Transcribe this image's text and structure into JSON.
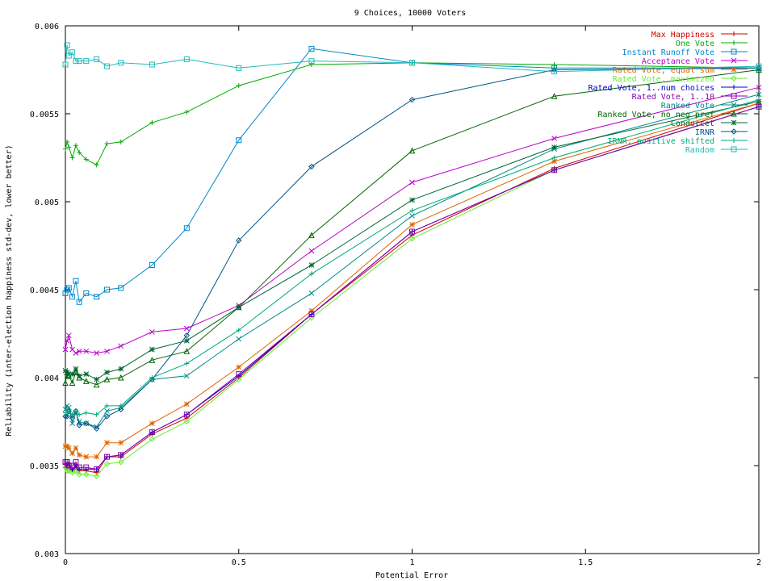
{
  "chart_data": {
    "type": "line",
    "title": "9 Choices, 10000 Voters",
    "xlabel": "Potential Error",
    "ylabel": "Reliability (inter-election happiness std-dev, lower better)",
    "xlim": [
      0,
      2
    ],
    "ylim": [
      0.003,
      0.006
    ],
    "xticks": [
      0,
      0.5,
      1,
      1.5,
      2
    ],
    "xtick_labels": [
      "0",
      "0.5",
      "1",
      "1.5",
      "2"
    ],
    "yticks": [
      0.003,
      0.0035,
      0.004,
      0.0045,
      0.005,
      0.0055,
      0.006
    ],
    "ytick_labels": [
      "0.003",
      "0.0035",
      "0.004",
      "0.0045",
      "0.005",
      "0.0055",
      "0.006"
    ],
    "grid": false,
    "legend_position": "top-right",
    "x": [
      0,
      0.005,
      0.01,
      0.02,
      0.03,
      0.04,
      0.06,
      0.09,
      0.12,
      0.16,
      0.25,
      0.35,
      0.5,
      0.71,
      1,
      1.41,
      2
    ],
    "series": [
      {
        "name": "Max Happiness",
        "color": "#cc0000",
        "marker": "+",
        "values": [
          0.00349,
          0.00348,
          0.00349,
          0.00347,
          0.00349,
          0.00347,
          0.00347,
          0.00346,
          0.00355,
          0.00355,
          0.00368,
          0.00377,
          0.004,
          0.00436,
          0.00481,
          0.00519,
          0.00556
        ]
      },
      {
        "name": "One Vote",
        "color": "#00aa00",
        "marker": "+",
        "values": [
          0.0053,
          0.00534,
          0.00531,
          0.00525,
          0.00532,
          0.00528,
          0.00524,
          0.00521,
          0.00533,
          0.00534,
          0.00545,
          0.00551,
          0.00566,
          0.00578,
          0.00579,
          0.00578,
          0.00576
        ]
      },
      {
        "name": "Instant Runoff Vote",
        "color": "#0088cc",
        "marker": "square",
        "values": [
          0.00448,
          0.0045,
          0.00451,
          0.00446,
          0.00455,
          0.00443,
          0.00448,
          0.00446,
          0.0045,
          0.00451,
          0.00464,
          0.00485,
          0.00535,
          0.00587,
          0.00579,
          0.00576,
          0.00576
        ]
      },
      {
        "name": "Acceptance Vote",
        "color": "#bb00cc",
        "marker": "x",
        "values": [
          0.00416,
          0.00421,
          0.00424,
          0.00416,
          0.00414,
          0.00415,
          0.00415,
          0.00414,
          0.00415,
          0.00418,
          0.00426,
          0.00428,
          0.00441,
          0.00472,
          0.00511,
          0.00536,
          0.00565
        ]
      },
      {
        "name": "Rated Vote, equal sum",
        "color": "#dd6600",
        "marker": "asterisk",
        "values": [
          0.00361,
          0.00361,
          0.0036,
          0.00357,
          0.0036,
          0.00356,
          0.00355,
          0.00355,
          0.00363,
          0.00363,
          0.00374,
          0.00385,
          0.00406,
          0.00438,
          0.00487,
          0.00523,
          0.00556
        ]
      },
      {
        "name": "Rated Vote, maximized",
        "color": "#66ee33",
        "marker": "diamond",
        "values": [
          0.00349,
          0.00347,
          0.00347,
          0.00346,
          0.00347,
          0.00345,
          0.00345,
          0.00344,
          0.00351,
          0.00352,
          0.00365,
          0.00375,
          0.00399,
          0.00434,
          0.00479,
          0.00518,
          0.00554
        ]
      },
      {
        "name": "Rated Vote, 1..num choices",
        "color": "#0000cc",
        "marker": "+",
        "values": [
          0.00351,
          0.0035,
          0.00351,
          0.00348,
          0.0035,
          0.00348,
          0.00348,
          0.00348,
          0.00355,
          0.00356,
          0.00369,
          0.00379,
          0.00401,
          0.00436,
          0.00483,
          0.00518,
          0.00554
        ]
      },
      {
        "name": "Rated Vote, 1..10",
        "color": "#8800aa",
        "marker": "square",
        "values": [
          0.00352,
          0.00352,
          0.0035,
          0.0035,
          0.00352,
          0.00349,
          0.00349,
          0.00348,
          0.00355,
          0.00356,
          0.00369,
          0.00379,
          0.00402,
          0.00436,
          0.00483,
          0.00518,
          0.00554
        ]
      },
      {
        "name": "Ranked Vote",
        "color": "#008888",
        "marker": "x",
        "values": [
          0.00382,
          0.00384,
          0.00383,
          0.00374,
          0.0038,
          0.00375,
          0.00374,
          0.00372,
          0.00381,
          0.00383,
          0.00399,
          0.00401,
          0.00422,
          0.00448,
          0.00492,
          0.0053,
          0.00561
        ]
      },
      {
        "name": "Ranked Vote, no neg pref",
        "color": "#006600",
        "marker": "triangle",
        "values": [
          0.00397,
          0.00403,
          0.00401,
          0.00397,
          0.00403,
          0.004,
          0.00398,
          0.00396,
          0.00399,
          0.004,
          0.0041,
          0.00415,
          0.0044,
          0.00481,
          0.00529,
          0.0056,
          0.00575
        ]
      },
      {
        "name": "Condorcet",
        "color": "#006633",
        "marker": "asterisk",
        "values": [
          0.00404,
          0.00403,
          0.00402,
          0.00402,
          0.00405,
          0.00401,
          0.00402,
          0.00399,
          0.00403,
          0.00405,
          0.00416,
          0.00421,
          0.0044,
          0.00464,
          0.00501,
          0.00531,
          0.00557
        ]
      },
      {
        "name": "IRNR",
        "color": "#005588",
        "marker": "diamond",
        "values": [
          0.00378,
          0.00378,
          0.00381,
          0.00377,
          0.00381,
          0.00373,
          0.00374,
          0.00371,
          0.00378,
          0.00382,
          0.00399,
          0.00424,
          0.00478,
          0.0052,
          0.00558,
          0.00575,
          0.00576
        ]
      },
      {
        "name": "IRNR, positive shifted",
        "color": "#00aa77",
        "marker": "+",
        "values": [
          0.0038,
          0.0038,
          0.00381,
          0.00379,
          0.00381,
          0.00379,
          0.0038,
          0.00379,
          0.00384,
          0.00384,
          0.004,
          0.00408,
          0.00427,
          0.00459,
          0.00495,
          0.00525,
          0.00558
        ]
      },
      {
        "name": "Random",
        "color": "#22bbbb",
        "marker": "square",
        "values": [
          0.00578,
          0.00589,
          0.00583,
          0.00585,
          0.0058,
          0.0058,
          0.0058,
          0.00581,
          0.00577,
          0.00579,
          0.00578,
          0.00581,
          0.00576,
          0.0058,
          0.00579,
          0.00574,
          0.00577
        ]
      }
    ]
  }
}
